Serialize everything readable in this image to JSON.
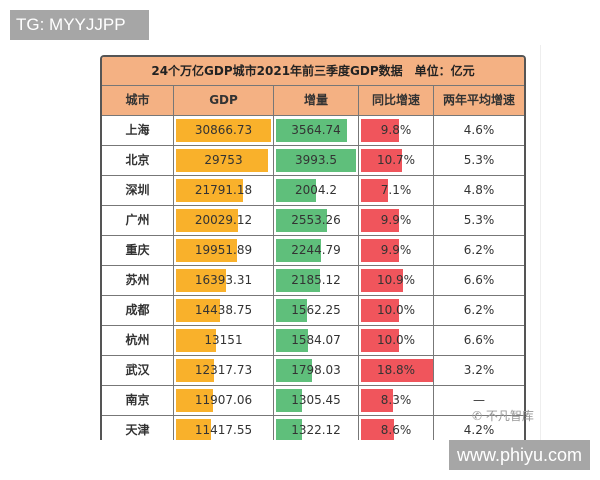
{
  "watermarks": {
    "tg": "TG: MYYJJPP",
    "site": "www.phiyu.com",
    "wechat": "不凡智库"
  },
  "table": {
    "title": "24个万亿GDP城市2021年前三季度GDP数据　单位：亿元",
    "headers": [
      "城市",
      "GDP",
      "增量",
      "同比增速",
      "两年平均增速"
    ],
    "colors": {
      "gdp": "#f9b12b",
      "increase": "#5fbf7b",
      "growth": "#f0555c",
      "header": "#f4b183"
    },
    "rows": [
      [
        "上海",
        "30866.73",
        "3564.74",
        "9.8%",
        "4.6%"
      ],
      [
        "北京",
        "29753",
        "3993.5",
        "10.7%",
        "5.3%"
      ],
      [
        "深圳",
        "21791.18",
        "2004.2",
        "7.1%",
        "4.8%"
      ],
      [
        "广州",
        "20029.12",
        "2553.26",
        "9.9%",
        "5.3%"
      ],
      [
        "重庆",
        "19951.89",
        "2244.79",
        "9.9%",
        "6.2%"
      ],
      [
        "苏州",
        "16393.31",
        "2185.12",
        "10.9%",
        "6.6%"
      ],
      [
        "成都",
        "14438.75",
        "1562.25",
        "10.0%",
        "6.2%"
      ],
      [
        "杭州",
        "13151",
        "1584.07",
        "10.0%",
        "6.6%"
      ],
      [
        "武汉",
        "12317.73",
        "1798.03",
        "18.8%",
        "3.2%"
      ],
      [
        "南京",
        "11907.06",
        "1305.45",
        "8.3%",
        "—"
      ],
      [
        "天津",
        "11417.55",
        "1322.12",
        "8.6%",
        "4.2%"
      ]
    ]
  }
}
